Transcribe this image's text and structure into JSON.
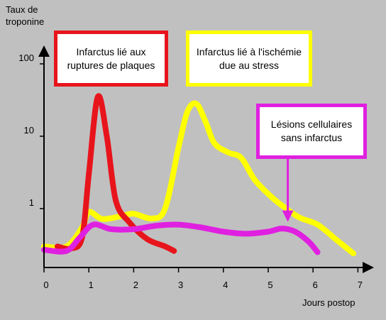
{
  "chart_data": {
    "type": "line",
    "ylabel": "Taux de troponine",
    "xlabel": "Jours postop",
    "x_ticks": [
      "0",
      "1",
      "2",
      "3",
      "4",
      "5",
      "6",
      "7"
    ],
    "y_scale": "log",
    "y_ticks": [
      "1",
      "10",
      "100"
    ],
    "grid": false,
    "series": [
      {
        "color": "#e8141c",
        "points": [
          [
            0.3,
            0.3
          ],
          [
            0.6,
            0.28
          ],
          [
            0.85,
            0.4
          ],
          [
            1.0,
            3
          ],
          [
            1.2,
            35
          ],
          [
            1.4,
            10
          ],
          [
            1.6,
            1.3
          ],
          [
            1.9,
            0.65
          ],
          [
            2.3,
            0.38
          ],
          [
            2.7,
            0.3
          ],
          [
            2.9,
            0.26
          ]
        ]
      },
      {
        "color": "#ffff00",
        "points": [
          [
            0.0,
            0.3
          ],
          [
            0.5,
            0.3
          ],
          [
            0.85,
            0.55
          ],
          [
            1.0,
            0.9
          ],
          [
            1.3,
            0.72
          ],
          [
            1.7,
            0.78
          ],
          [
            2.0,
            0.85
          ],
          [
            2.4,
            0.73
          ],
          [
            2.7,
            1.0
          ],
          [
            3.0,
            7
          ],
          [
            3.2,
            22
          ],
          [
            3.4,
            28
          ],
          [
            3.6,
            16
          ],
          [
            3.8,
            8
          ],
          [
            4.1,
            6
          ],
          [
            4.4,
            5
          ],
          [
            4.7,
            2.5
          ],
          [
            5.1,
            1.4
          ],
          [
            5.4,
            1.0
          ],
          [
            5.7,
            0.75
          ],
          [
            6.1,
            0.6
          ],
          [
            6.5,
            0.38
          ],
          [
            6.9,
            0.24
          ]
        ]
      },
      {
        "color": "#e020e0",
        "points": [
          [
            0.0,
            0.27
          ],
          [
            0.5,
            0.26
          ],
          [
            0.8,
            0.4
          ],
          [
            1.1,
            0.6
          ],
          [
            1.5,
            0.52
          ],
          [
            2.0,
            0.52
          ],
          [
            2.5,
            0.58
          ],
          [
            3.0,
            0.6
          ],
          [
            3.5,
            0.55
          ],
          [
            4.0,
            0.48
          ],
          [
            4.5,
            0.45
          ],
          [
            5.0,
            0.48
          ],
          [
            5.3,
            0.53
          ],
          [
            5.6,
            0.48
          ],
          [
            5.9,
            0.35
          ],
          [
            6.1,
            0.25
          ]
        ]
      }
    ],
    "annotations": [
      {
        "text": "Infarctus lié aux ruptures de plaques",
        "color": "#e8141c"
      },
      {
        "text": "Infarctus lié à l'ischémie due au stress",
        "color": "#ffff00"
      },
      {
        "text": "Lésions cellulaires sans infarctus",
        "color": "#e020e0",
        "arrow_to": [
          5.5,
          0.6
        ]
      }
    ]
  }
}
